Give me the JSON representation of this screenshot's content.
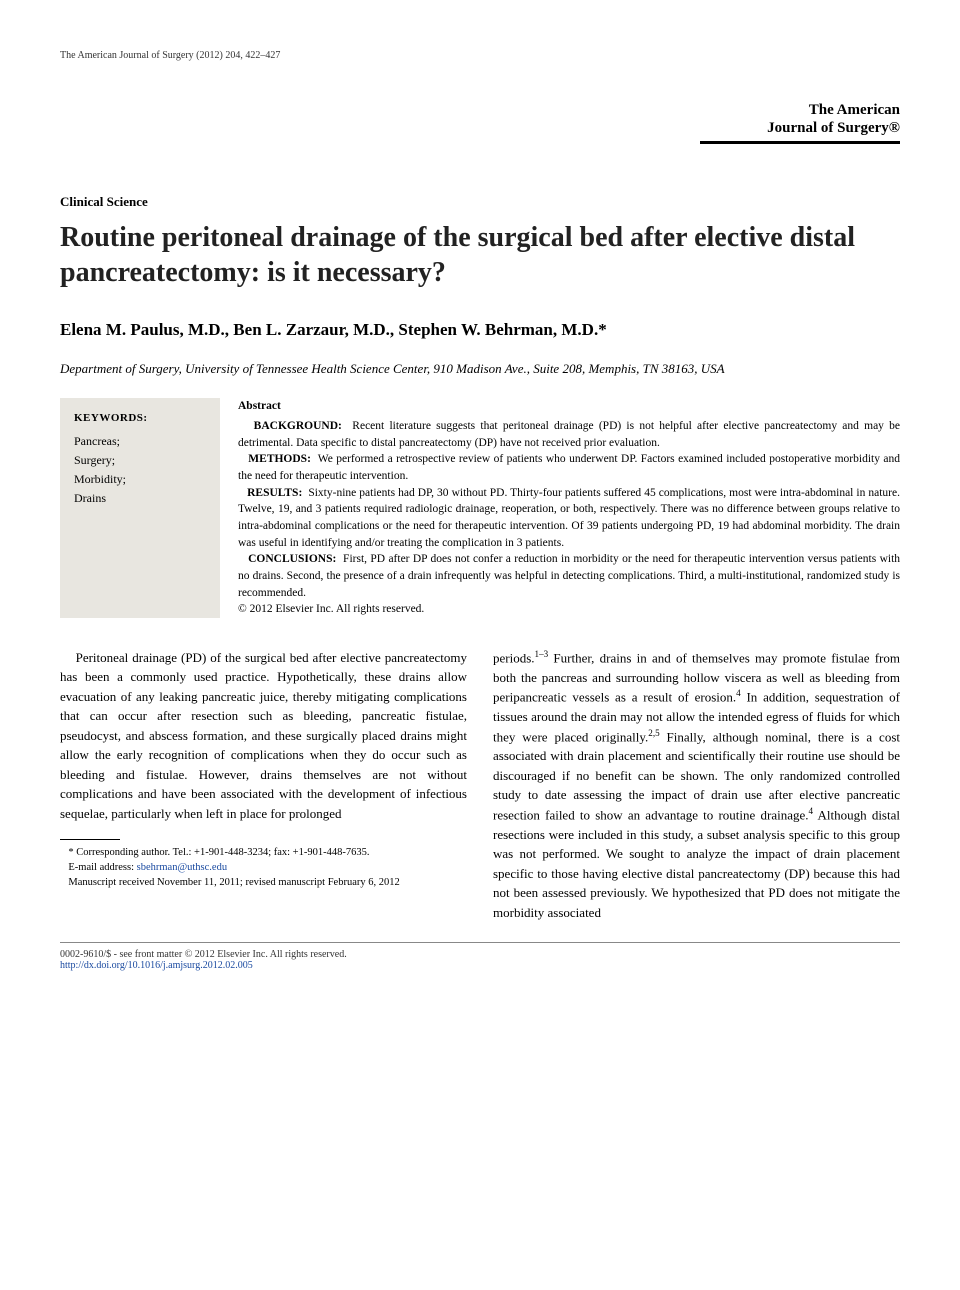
{
  "running_head": "The American Journal of Surgery (2012) 204, 422–427",
  "brand": {
    "line1": "The American",
    "line2": "Journal of Surgery®"
  },
  "section_label": "Clinical Science",
  "title": "Routine peritoneal drainage of the surgical bed after elective distal pancreatectomy: is it necessary?",
  "authors": "Elena M. Paulus, M.D., Ben L. Zarzaur, M.D., Stephen W. Behrman, M.D.*",
  "affiliation": "Department of Surgery, University of Tennessee Health Science Center, 910 Madison Ave., Suite 208, Memphis, TN 38163, USA",
  "keywords": {
    "head": "KEYWORDS:",
    "items": [
      "Pancreas;",
      "Surgery;",
      "Morbidity;",
      "Drains"
    ]
  },
  "abstract": {
    "head": "Abstract",
    "background_label": "BACKGROUND:",
    "background": "Recent literature suggests that peritoneal drainage (PD) is not helpful after elective pancreatectomy and may be detrimental. Data specific to distal pancreatectomy (DP) have not received prior evaluation.",
    "methods_label": "METHODS:",
    "methods": "We performed a retrospective review of patients who underwent DP. Factors examined included postoperative morbidity and the need for therapeutic intervention.",
    "results_label": "RESULTS:",
    "results": "Sixty-nine patients had DP, 30 without PD. Thirty-four patients suffered 45 complications, most were intra-abdominal in nature. Twelve, 19, and 3 patients required radiologic drainage, reoperation, or both, respectively. There was no difference between groups relative to intra-abdominal complications or the need for therapeutic intervention. Of 39 patients undergoing PD, 19 had abdominal morbidity. The drain was useful in identifying and/or treating the complication in 3 patients.",
    "conclusions_label": "CONCLUSIONS:",
    "conclusions": "First, PD after DP does not confer a reduction in morbidity or the need for therapeutic intervention versus patients with no drains. Second, the presence of a drain infrequently was helpful in detecting complications. Third, a multi-institutional, randomized study is recommended.",
    "copyright": "© 2012 Elsevier Inc. All rights reserved."
  },
  "body": {
    "left": "Peritoneal drainage (PD) of the surgical bed after elective pancreatectomy has been a commonly used practice. Hypothetically, these drains allow evacuation of any leaking pancreatic juice, thereby mitigating complications that can occur after resection such as bleeding, pancreatic fistulae, pseudocyst, and abscess formation, and these surgically placed drains might allow the early recognition of complications when they do occur such as bleeding and fistulae. However, drains themselves are not without complications and have been associated with the development of infectious sequelae, particularly when left in place for prolonged",
    "right_a": "periods.",
    "right_sup1": "1–3",
    "right_b": " Further, drains in and of themselves may promote fistulae from both the pancreas and surrounding hollow viscera as well as bleeding from peripancreatic vessels as a result of erosion.",
    "right_sup2": "4",
    "right_c": " In addition, sequestration of tissues around the drain may not allow the intended egress of fluids for which they were placed originally.",
    "right_sup3": "2,5",
    "right_d": " Finally, although nominal, there is a cost associated with drain placement and scientifically their routine use should be discouraged if no benefit can be shown. The only randomized controlled study to date assessing the impact of drain use after elective pancreatic resection failed to show an advantage to routine drainage.",
    "right_sup4": "4",
    "right_e": " Although distal resections were included in this study, a subset analysis specific to this group was not performed. We sought to analyze the impact of drain placement specific to those having elective distal pancreatectomy (DP) because this had not been assessed previously. We hypothesized that PD does not mitigate the morbidity associated"
  },
  "footnotes": {
    "corr": "* Corresponding author. Tel.: +1-901-448-3234; fax: +1-901-448-7635.",
    "email_label": "E-mail address: ",
    "email": "sbehrman@uthsc.edu",
    "ms": "Manuscript received November 11, 2011; revised manuscript February 6, 2012"
  },
  "bottom": {
    "left": "0002-9610/$ - see front matter © 2012 Elsevier Inc. All rights reserved.",
    "doi": "http://dx.doi.org/10.1016/j.amjsurg.2012.02.005"
  }
}
